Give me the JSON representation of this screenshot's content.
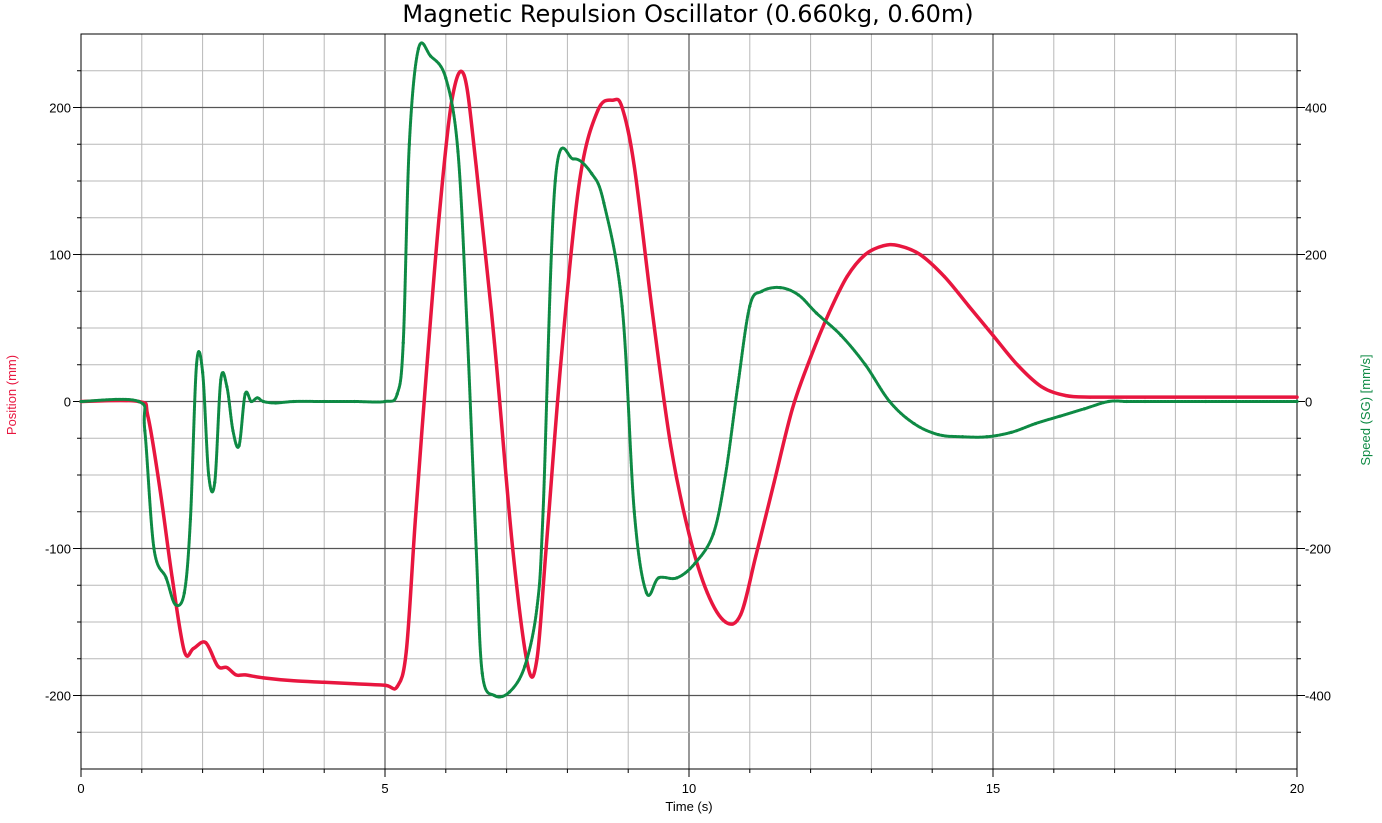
{
  "chart_data": {
    "type": "line",
    "title": "Magnetic Repulsion Oscillator (0.660kg, 0.60m)",
    "xlabel": "Time (s)",
    "ylabel_left": "Position (mm)",
    "ylabel_right": "Speed (SG) [mm/s]",
    "xlim": [
      0,
      20
    ],
    "ylim_left": [
      -250,
      250
    ],
    "ylim_right": [
      -500,
      500
    ],
    "x_ticks": [
      "0",
      "5",
      "10",
      "15",
      "20"
    ],
    "y_left_ticks": [
      "200",
      "100",
      "0",
      "-100",
      "-200"
    ],
    "y_right_ticks": [
      "400",
      "200",
      "0",
      "-200",
      "-400"
    ],
    "grid": true,
    "colors": {
      "position": "#e8163f",
      "speed": "#0e8a44"
    },
    "series": [
      {
        "name": "Position (mm)",
        "axis": "left",
        "color": "#e8163f",
        "x": [
          0,
          0.95,
          1.1,
          1.3,
          1.5,
          1.7,
          1.85,
          2.05,
          2.25,
          2.4,
          2.55,
          2.7,
          3.0,
          3.5,
          4.0,
          4.5,
          5.0,
          5.2,
          5.35,
          5.5,
          5.7,
          5.9,
          6.1,
          6.3,
          6.5,
          6.8,
          7.1,
          7.35,
          7.5,
          7.65,
          7.9,
          8.2,
          8.5,
          8.75,
          8.9,
          9.1,
          9.4,
          9.7,
          10.0,
          10.3,
          10.6,
          10.85,
          11.1,
          11.4,
          11.7,
          12.0,
          12.3,
          12.6,
          12.9,
          13.2,
          13.45,
          13.8,
          14.2,
          14.6,
          15.0,
          15.4,
          15.8,
          16.2,
          16.6,
          17.0,
          17.5,
          18.0,
          19.0,
          20.0
        ],
        "values": [
          0,
          0,
          -10,
          -60,
          -120,
          -170,
          -168,
          -164,
          -180,
          -181,
          -186,
          -186,
          -188,
          -190,
          -191,
          -192,
          -193,
          -194,
          -170,
          -80,
          30,
          130,
          205,
          222,
          160,
          40,
          -100,
          -180,
          -175,
          -100,
          30,
          150,
          198,
          205,
          200,
          160,
          60,
          -30,
          -90,
          -130,
          -150,
          -145,
          -105,
          -55,
          -5,
          30,
          60,
          85,
          100,
          106,
          106,
          100,
          85,
          65,
          45,
          25,
          10,
          4,
          3,
          3,
          3,
          3,
          3,
          3
        ]
      },
      {
        "name": "Speed (SG) [mm/s]",
        "axis": "right",
        "color": "#0e8a44",
        "x": [
          0,
          0.95,
          1.05,
          1.2,
          1.4,
          1.55,
          1.7,
          1.8,
          1.9,
          2.0,
          2.1,
          2.2,
          2.3,
          2.4,
          2.5,
          2.6,
          2.7,
          2.8,
          2.9,
          3.0,
          3.2,
          3.5,
          4.0,
          4.5,
          5.0,
          5.2,
          5.3,
          5.4,
          5.55,
          5.75,
          6.0,
          6.2,
          6.35,
          6.5,
          6.6,
          6.8,
          7.05,
          7.3,
          7.5,
          7.6,
          7.8,
          8.1,
          8.4,
          8.6,
          8.9,
          9.1,
          9.3,
          9.5,
          9.8,
          10.1,
          10.4,
          10.6,
          10.8,
          11.0,
          11.2,
          11.5,
          11.8,
          12.1,
          12.5,
          12.9,
          13.3,
          13.7,
          14.1,
          14.5,
          14.9,
          15.3,
          15.7,
          16.1,
          16.5,
          16.9,
          17.2,
          17.5,
          18.5,
          20.0
        ],
        "values": [
          0,
          0,
          -40,
          -200,
          -240,
          -276,
          -260,
          -160,
          50,
          40,
          -100,
          -110,
          30,
          20,
          -40,
          -60,
          10,
          0,
          5,
          0,
          -2,
          0,
          0,
          0,
          0,
          10,
          80,
          350,
          480,
          470,
          440,
          340,
          100,
          -200,
          -370,
          -400,
          -395,
          -360,
          -280,
          -150,
          300,
          330,
          310,
          270,
          130,
          -150,
          -260,
          -240,
          -240,
          -220,
          -180,
          -100,
          20,
          130,
          150,
          155,
          145,
          120,
          90,
          50,
          0,
          -30,
          -45,
          -48,
          -48,
          -42,
          -30,
          -20,
          -10,
          0,
          0,
          0,
          0,
          0
        ]
      }
    ]
  }
}
